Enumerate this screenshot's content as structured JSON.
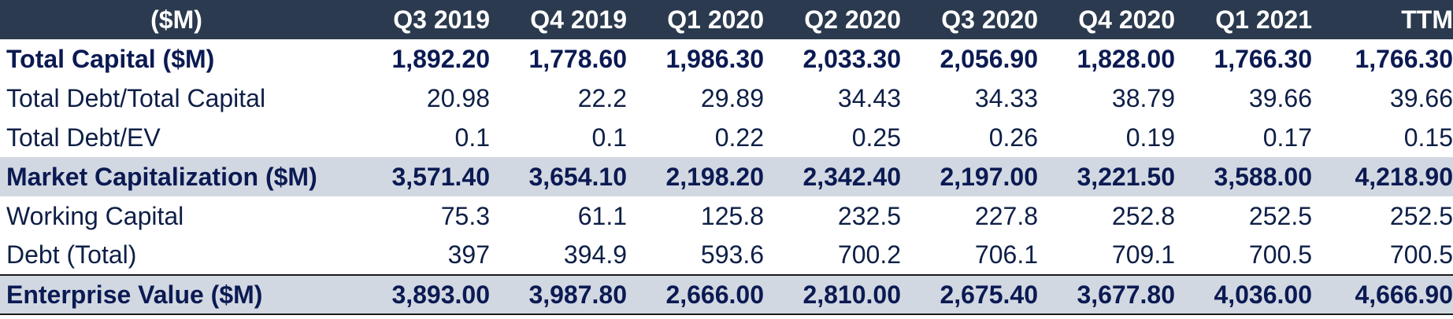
{
  "table": {
    "header": [
      "($M)",
      "Q3 2019",
      "Q4 2019",
      "Q1 2020",
      "Q2 2020",
      "Q3 2020",
      "Q4 2020",
      "Q1 2021",
      "TTM"
    ],
    "rows": [
      {
        "label": "Total Capital ($M)",
        "values": [
          "1,892.20",
          "1,778.60",
          "1,986.30",
          "2,033.30",
          "2,056.90",
          "1,828.00",
          "1,766.30",
          "1,766.30"
        ]
      },
      {
        "label": "Total Debt/Total Capital",
        "values": [
          "20.98",
          "22.2",
          "29.89",
          "34.43",
          "34.33",
          "38.79",
          "39.66",
          "39.66"
        ]
      },
      {
        "label": "Total Debt/EV",
        "values": [
          "0.1",
          "0.1",
          "0.22",
          "0.25",
          "0.26",
          "0.19",
          "0.17",
          "0.15"
        ]
      },
      {
        "label": "Market Capitalization ($M)",
        "values": [
          "3,571.40",
          "3,654.10",
          "2,198.20",
          "2,342.40",
          "2,197.00",
          "3,221.50",
          "3,588.00",
          "4,218.90"
        ]
      },
      {
        "label": "Working Capital",
        "values": [
          "75.3",
          "61.1",
          "125.8",
          "232.5",
          "227.8",
          "252.8",
          "252.5",
          "252.5"
        ]
      },
      {
        "label": "Debt (Total)",
        "values": [
          "397",
          "394.9",
          "593.6",
          "700.2",
          "706.1",
          "709.1",
          "700.5",
          "700.5"
        ]
      },
      {
        "label": "Enterprise Value ($M)",
        "values": [
          "3,893.00",
          "3,987.80",
          "2,666.00",
          "2,810.00",
          "2,675.40",
          "3,677.80",
          "4,036.00",
          "4,666.90"
        ]
      }
    ]
  },
  "colors": {
    "header_bg": "#2b3a4e",
    "header_text": "#ffffff",
    "highlight_row_bg": "#d2d8e2",
    "body_text": "#0e1f46"
  }
}
